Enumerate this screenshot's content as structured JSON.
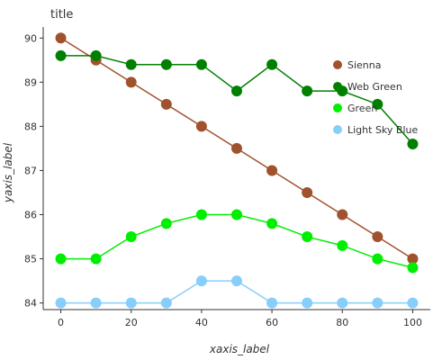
{
  "chart_data": {
    "type": "line",
    "title": "title",
    "xlabel": "xaxis_label",
    "ylabel": "yaxis_label",
    "xlim": [
      -5,
      105
    ],
    "ylim": [
      83.85,
      90.25
    ],
    "x_ticks": [
      0,
      20,
      40,
      60,
      80,
      100
    ],
    "y_ticks": [
      84,
      85,
      86,
      87,
      88,
      89,
      90
    ],
    "grid": false,
    "legend_position": "top-right",
    "x": [
      0,
      10,
      20,
      30,
      40,
      50,
      60,
      70,
      80,
      90,
      100
    ],
    "series": [
      {
        "name": "Sienna",
        "color": "#A0522D",
        "values": [
          90.0,
          89.5,
          89.0,
          88.5,
          88.0,
          87.5,
          87.0,
          86.5,
          86.0,
          85.5,
          85.0
        ]
      },
      {
        "name": "Web Green",
        "color": "#008000",
        "values": [
          89.6,
          89.6,
          89.4,
          89.4,
          89.4,
          88.8,
          89.4,
          88.8,
          88.8,
          88.5,
          87.6
        ]
      },
      {
        "name": "Green",
        "color": "#00EE00",
        "values": [
          85.0,
          85.0,
          85.5,
          85.8,
          86.0,
          86.0,
          85.8,
          85.5,
          85.3,
          85.0,
          84.8
        ]
      },
      {
        "name": "Light Sky Blue",
        "color": "#87CEFA",
        "values": [
          84.0,
          84.0,
          84.0,
          84.0,
          84.5,
          84.5,
          84.0,
          84.0,
          84.0,
          84.0,
          84.0
        ]
      }
    ]
  }
}
